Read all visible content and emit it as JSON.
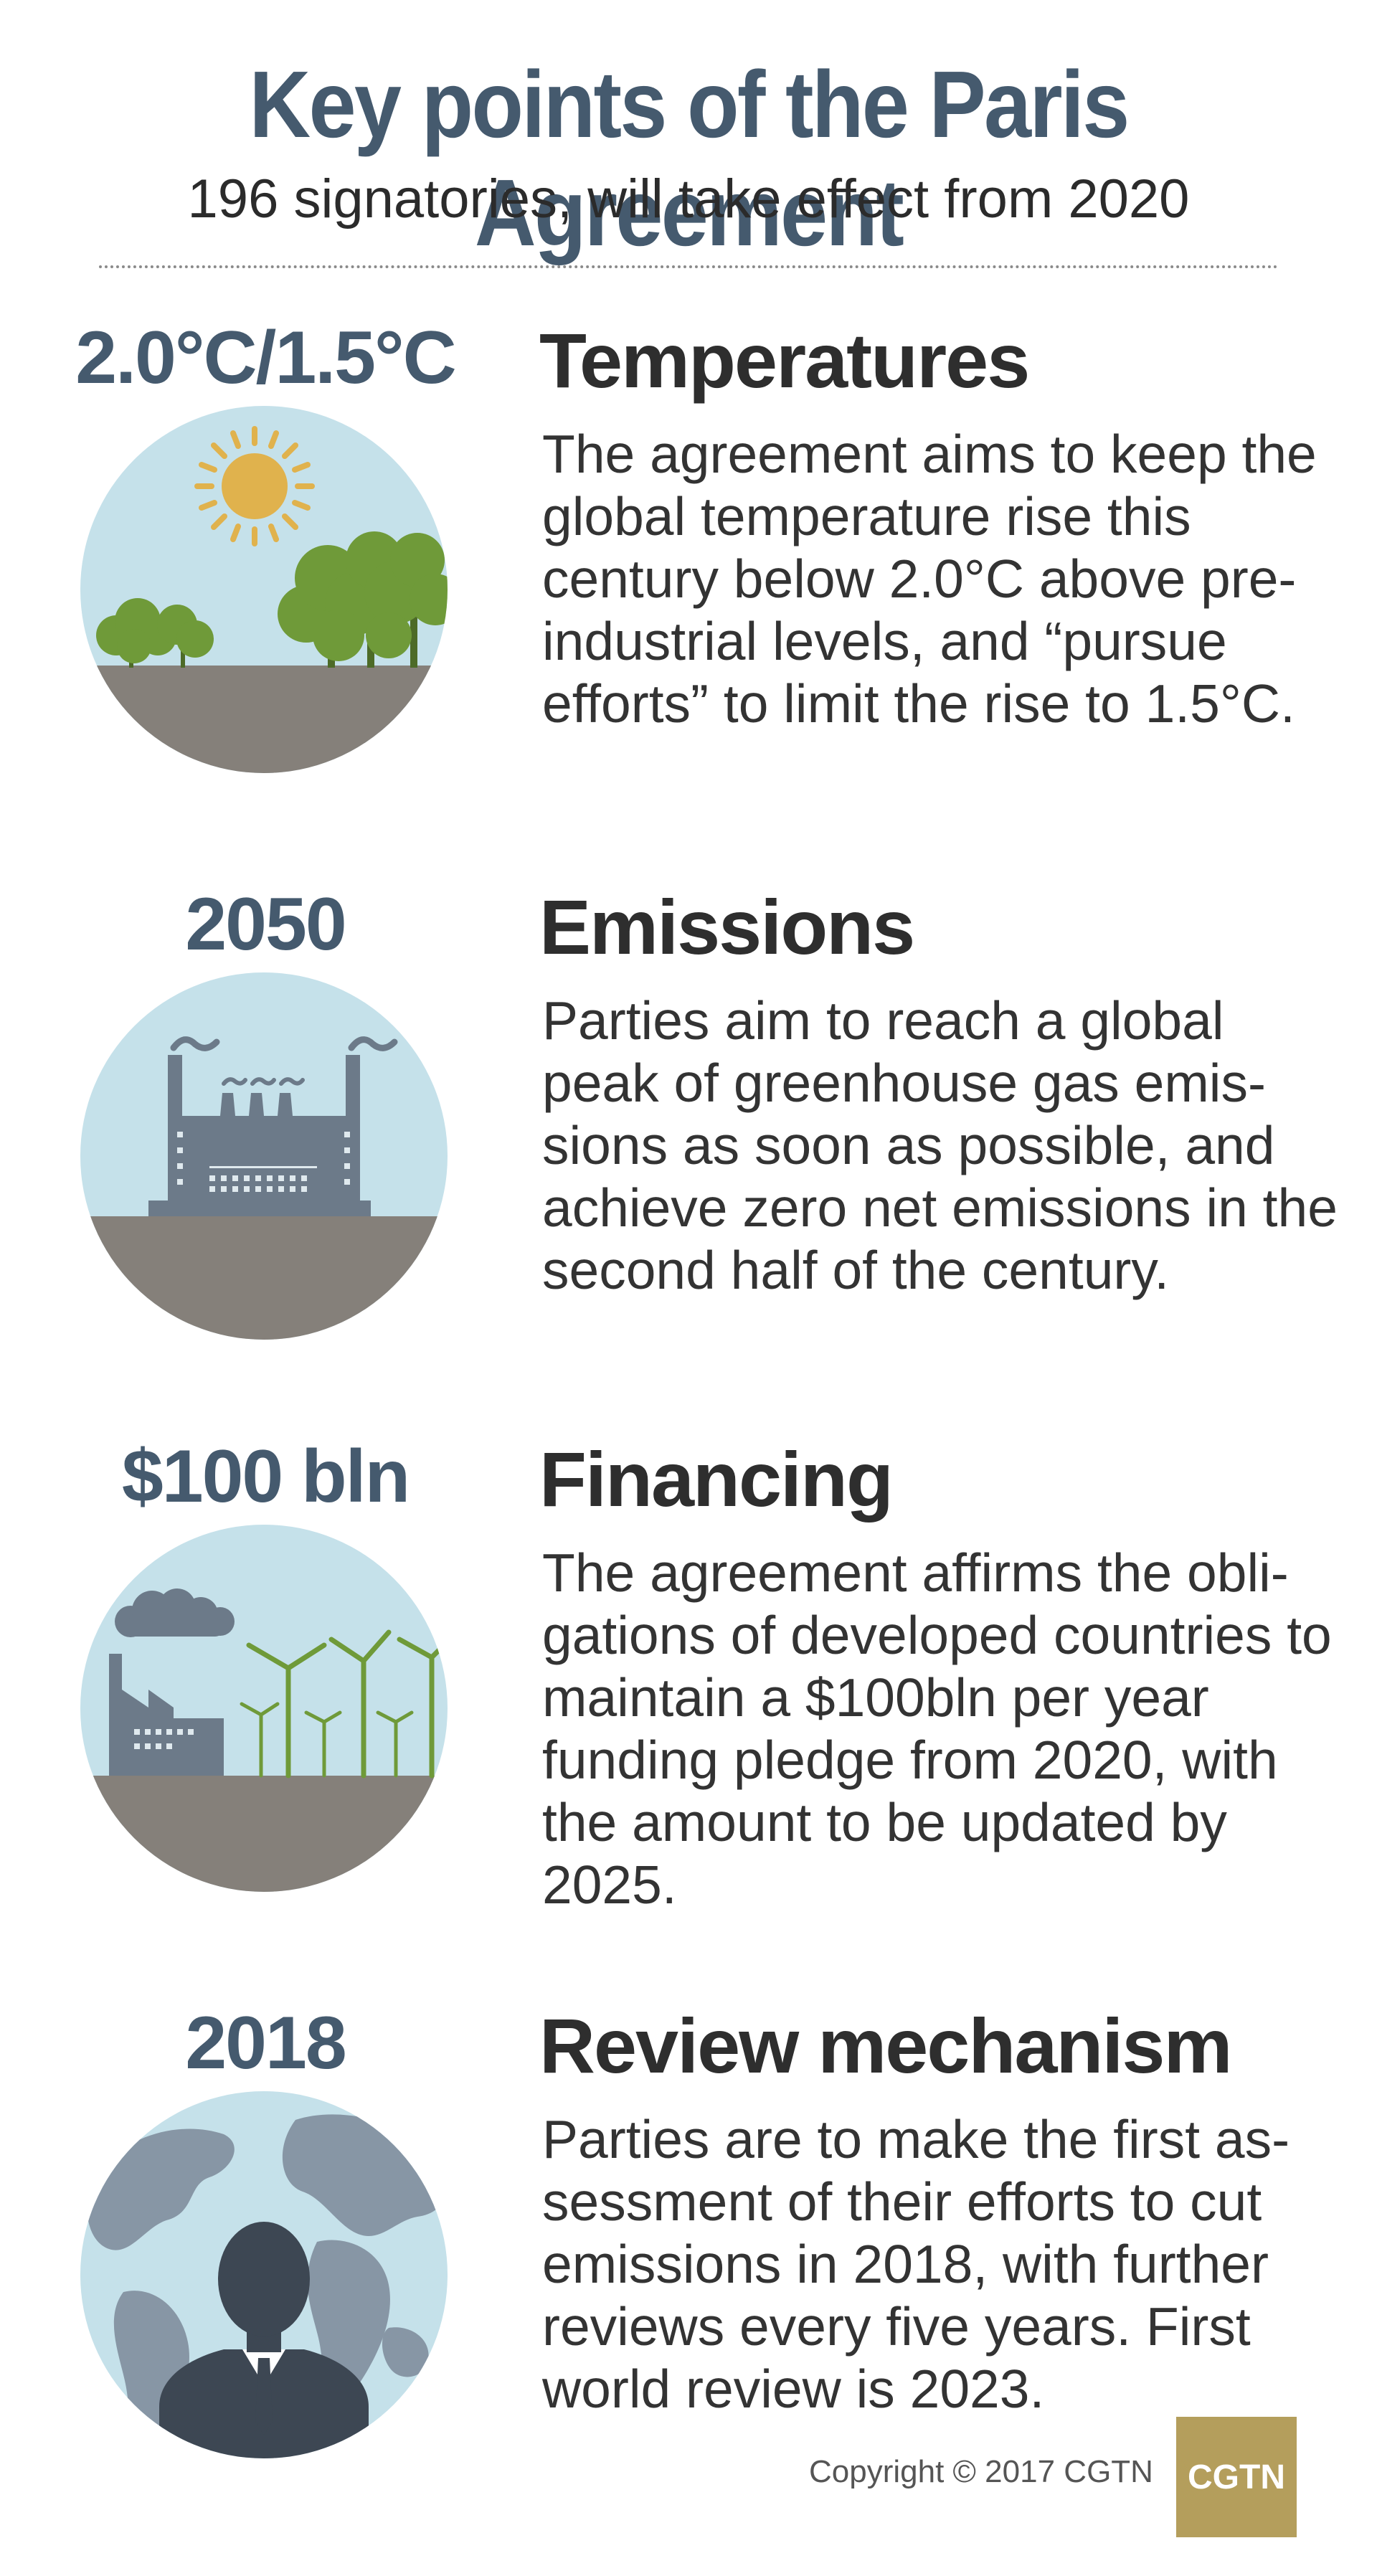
{
  "header": {
    "title": "Key points of the Paris Agreement",
    "subtitle": "196 signatories, will take effect from 2020"
  },
  "sections": [
    {
      "metric": "2.0°C/1.5°C",
      "heading": "Temperatures",
      "text": "The agreement aims to keep the global temperature rise this century below 2.0°C above pre-industrial levels, and “pursue efforts” to limit the rise to 1.5°C.",
      "icon": "sun-trees-icon"
    },
    {
      "metric": "2050",
      "heading": "Emissions",
      "text": "Parties aim to reach a global peak of greenhouse gas emis-sions as soon as possible, and achieve zero net emissions in the second half of the century.",
      "icon": "factory-icon"
    },
    {
      "metric": "$100 bln",
      "heading": "Financing",
      "text": "The agreement affirms the obli-gations of developed countries to maintain a $100bln per year funding pledge from 2020, with the amount to be updated by 2025.",
      "icon": "wind-turbines-icon"
    },
    {
      "metric": "2018",
      "heading": "Review mechanism",
      "text": "Parties are to make the first as-sessment of their efforts to cut emissions in 2018, with further reviews every five years. First world review is 2023.",
      "icon": "globe-person-icon"
    }
  ],
  "footer": {
    "copyright": "Copyright © 2017 CGTN",
    "logo": "CGTN"
  },
  "colors": {
    "title": "#455a6e",
    "sky": "#c5e1ea",
    "ground": "#85807a",
    "tree": "#6f9a39",
    "sun": "#e0b24d",
    "factory": "#6c7a89",
    "logo": "#b49e5c"
  }
}
